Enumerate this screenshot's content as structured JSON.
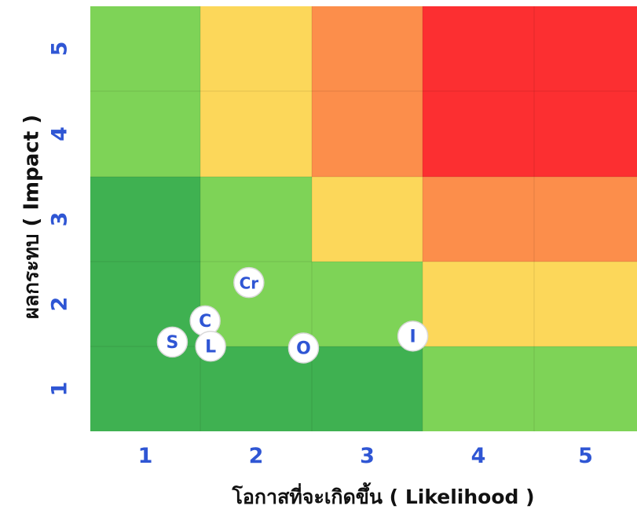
{
  "chart_data": {
    "type": "heatmap",
    "title": "",
    "xlabel": "โอกาสที่จะเกิดขึ้น ( Likelihood )",
    "ylabel": "ผลกระทบ ( Impact )",
    "x_ticks": [
      "1",
      "2",
      "3",
      "4",
      "5"
    ],
    "y_ticks": [
      "1",
      "2",
      "3",
      "4",
      "5"
    ],
    "tick_color": "#2f56d4",
    "cell_colors": {
      "5": [
        "#7ed357",
        "#fcd75a",
        "#fc8e4b",
        "#fc2f31",
        "#fc2f31"
      ],
      "4": [
        "#7ed357",
        "#fcd75a",
        "#fc8e4b",
        "#fc2f31",
        "#fc2f31"
      ],
      "3": [
        "#3fb151",
        "#7ed357",
        "#fcd75a",
        "#fc8e4b",
        "#fc8e4b"
      ],
      "2": [
        "#3fb151",
        "#7ed357",
        "#7ed357",
        "#fcd75a",
        "#fcd75a"
      ],
      "1": [
        "#3fb151",
        "#3fb151",
        "#3fb151",
        "#7ed357",
        "#7ed357"
      ]
    },
    "markers": [
      {
        "label": "Cr",
        "x": 1.45,
        "y": 1.75
      },
      {
        "label": "C",
        "x": 1.05,
        "y": 1.3
      },
      {
        "label": "S",
        "x": 0.75,
        "y": 1.05
      },
      {
        "label": "L",
        "x": 1.1,
        "y": 1.0
      },
      {
        "label": "O",
        "x": 1.95,
        "y": 0.98
      },
      {
        "label": "I",
        "x": 2.95,
        "y": 1.12
      }
    ],
    "marker_text_color": "#2f56d4",
    "grid": true
  }
}
